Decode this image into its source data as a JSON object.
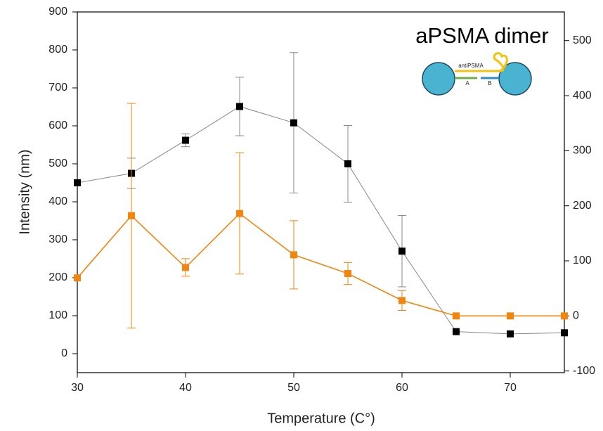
{
  "chart_data": {
    "type": "line",
    "x_label": "Temperature (C°)",
    "y_label": "Intensity (nm)",
    "annotation": "aPSMA dimer",
    "diagram_labels": [
      "antiPSMA",
      "A",
      "B"
    ],
    "x": [
      30,
      35,
      40,
      45,
      50,
      55,
      60,
      65,
      70,
      75
    ],
    "series": [
      {
        "color": "#000000",
        "line_color": "#888888",
        "values": [
          450,
          475,
          562,
          651,
          608,
          500,
          270,
          58,
          52,
          55
        ],
        "errors": [
          null,
          40,
          17,
          77,
          185,
          101,
          94,
          null,
          null,
          null
        ]
      },
      {
        "color": "#f0850f",
        "line_color": "#f0850f",
        "axis": "y2",
        "values": [
          69,
          182,
          88,
          186,
          111,
          77,
          28,
          0,
          0,
          0
        ],
        "errors": [
          null,
          204,
          16,
          110,
          62,
          20,
          18,
          null,
          null,
          null
        ]
      }
    ],
    "xlim": [
      30,
      75
    ],
    "xticks": [
      30,
      40,
      50,
      60,
      70
    ],
    "ylim": [
      -50,
      900
    ],
    "yticks": [
      0,
      100,
      200,
      300,
      400,
      500,
      600,
      700,
      800,
      900
    ],
    "y2lim": [
      -103,
      552
    ],
    "y2ticks": [
      -100,
      0,
      100,
      200,
      300,
      400,
      500
    ]
  }
}
